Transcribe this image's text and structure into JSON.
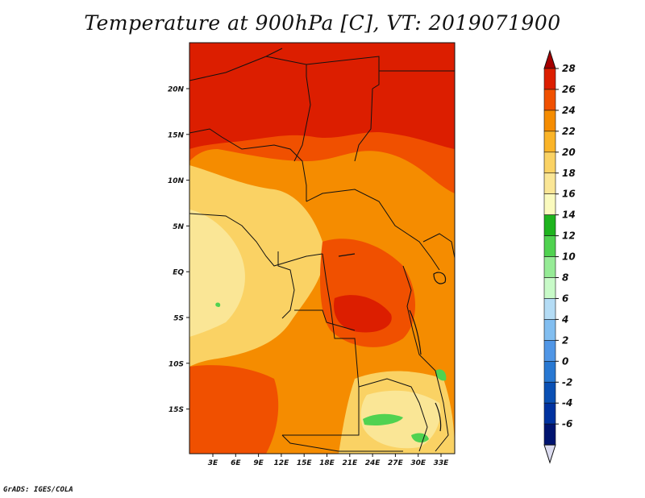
{
  "title": "Temperature at 900hPa [C], VT: 2019071900",
  "credit": "GrADS: IGES/COLA",
  "map": {
    "lat_labels": [
      "20N",
      "15N",
      "10N",
      "5N",
      "EQ",
      "5S",
      "10S",
      "15S"
    ],
    "lon_labels": [
      "3E",
      "6E",
      "9E",
      "12E",
      "15E",
      "18E",
      "21E",
      "24E",
      "27E",
      "30E",
      "33E"
    ],
    "field": "Temperature at 900hPa",
    "units": "C"
  },
  "colorbar": {
    "labels": [
      "28",
      "26",
      "24",
      "22",
      "20",
      "18",
      "16",
      "14",
      "12",
      "10",
      "8",
      "6",
      "4",
      "2",
      "0",
      "-2",
      "-4",
      "-6"
    ],
    "colors": [
      "#a50000",
      "#dc1e00",
      "#f05000",
      "#f58c00",
      "#fab428",
      "#fad264",
      "#fae696",
      "#fafabe",
      "#1eb41e",
      "#50d250",
      "#96eb96",
      "#c8fac8",
      "#b4dcf5",
      "#82bef0",
      "#5096e6",
      "#2878d2",
      "#0a50b4",
      "#0032a0",
      "#001470"
    ],
    "under_color": "#dcdcf0",
    "over_color": "#a50000"
  }
}
